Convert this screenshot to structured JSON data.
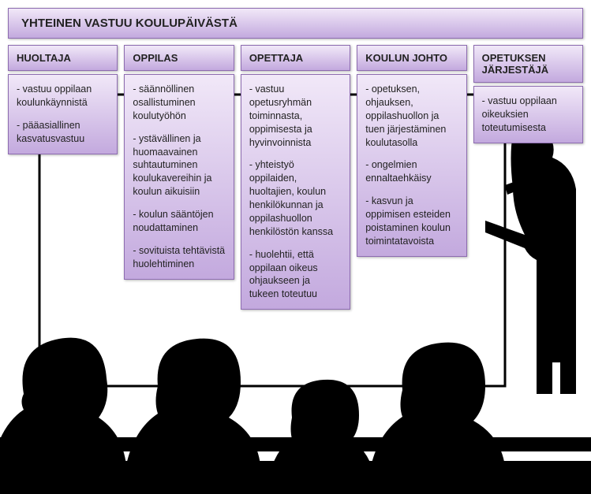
{
  "style": {
    "grad_top": "#f1e8f8",
    "grad_bottom": "#c3a9de",
    "border_color": "#8d6cb0",
    "text_color": "#222222",
    "title_fontsize": 15,
    "header_fontsize": 13,
    "body_fontsize": 12.5
  },
  "title": "YHTEINEN VASTUU KOULUPÄIVÄSTÄ",
  "columns": [
    {
      "header": "HUOLTAJA",
      "items": [
        "- vastuu oppilaan koulunkäynnistä",
        "- pääasiallinen kasvatusvastuu"
      ]
    },
    {
      "header": "OPPILAS",
      "items": [
        "- säännöllinen osallistuminen koulutyöhön",
        "- ystävällinen ja huomaavainen suhtautuminen koulukavereihin ja koulun aikuisiin",
        "- koulun sääntöjen noudattaminen",
        "- sovituista tehtävistä huolehtiminen"
      ]
    },
    {
      "header": "OPETTAJA",
      "items": [
        "- vastuu opetusryhmän toiminnasta, oppimisesta ja hyvinvoinnista",
        "- yhteistyö oppilaiden, huoltajien, koulun henkilökunnan ja oppilashuollon henkilöstön kanssa",
        "- huolehtii, että oppilaan oikeus ohjaukseen ja tukeen toteutuu"
      ]
    },
    {
      "header": "KOULUN JOHTO",
      "items": [
        "- opetuksen, ohjauksen, oppilashuollon ja tuen järjestäminen koulutasolla",
        "- ongelmien ennaltaehkäisy",
        "- kasvun ja oppimisen esteiden poistaminen koulun toimintatavoista"
      ]
    },
    {
      "header": "OPETUKSEN JÄRJESTÄJÄ",
      "items": [
        "- vastuu oppilaan oikeuksien toteutumisesta"
      ]
    }
  ]
}
